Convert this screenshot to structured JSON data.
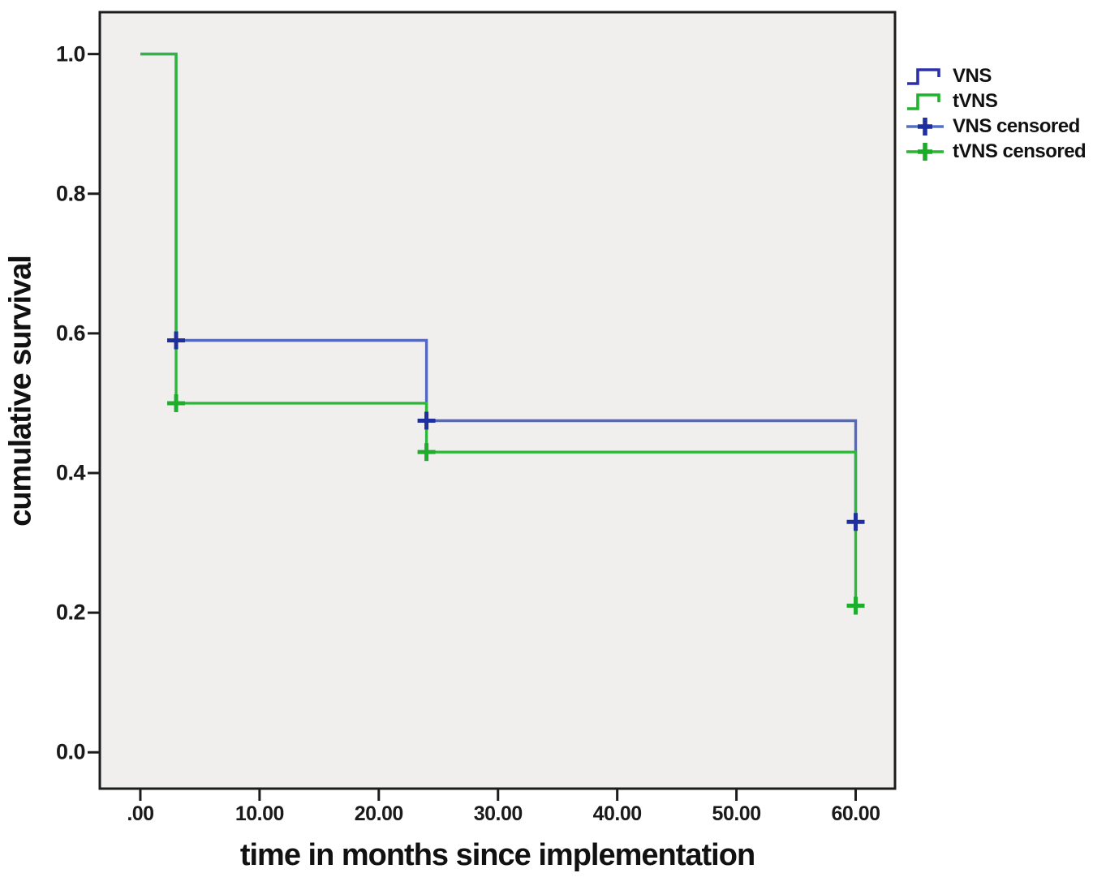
{
  "figure": {
    "background": "#ffffff",
    "plot_background": "#f0efee",
    "frame_color": "#1c1c1c",
    "text_color": "#1a1a1a"
  },
  "legend": {
    "items": [
      {
        "label": "VNS",
        "glyph": "step-line-icon",
        "color": "#2b2fb0",
        "accent": "#2b2fb0"
      },
      {
        "label": "tVNS",
        "glyph": "step-line-icon",
        "color": "#1eb42c",
        "accent": "#1eb42c"
      },
      {
        "label": "VNS censored",
        "glyph": "censored-plus-icon",
        "color": "#5570c6",
        "accent": "#1e2f9f"
      },
      {
        "label": "tVNS censored",
        "glyph": "censored-plus-icon",
        "color": "#25b531",
        "accent": "#1caa28"
      }
    ]
  },
  "chart_data": {
    "type": "line",
    "subtype": "kaplan_meier_step",
    "title": "",
    "xlabel": "time in months since implementation",
    "ylabel": "cumulative survival",
    "xlim": [
      -3.4,
      63.3
    ],
    "ylim": [
      -0.052,
      1.06
    ],
    "grid": false,
    "legend_position": "outside-top-right",
    "x_ticks": [
      {
        "value": 0,
        "label": ".00"
      },
      {
        "value": 10,
        "label": "10.00"
      },
      {
        "value": 20,
        "label": "20.00"
      },
      {
        "value": 30,
        "label": "30.00"
      },
      {
        "value": 40,
        "label": "40.00"
      },
      {
        "value": 50,
        "label": "50.00"
      },
      {
        "value": 60,
        "label": "60.00"
      }
    ],
    "y_ticks": [
      {
        "value": 0.0,
        "label": "0.0"
      },
      {
        "value": 0.2,
        "label": "0.2"
      },
      {
        "value": 0.4,
        "label": "0.4"
      },
      {
        "value": 0.6,
        "label": "0.6"
      },
      {
        "value": 0.8,
        "label": "0.8"
      },
      {
        "value": 1.0,
        "label": "1.0"
      }
    ],
    "series": [
      {
        "name": "VNS",
        "color": "#5468c0",
        "censor_color": "#1f2f9d",
        "steps": [
          [
            0,
            1.0
          ],
          [
            3,
            1.0
          ],
          [
            3,
            0.59
          ],
          [
            24,
            0.59
          ],
          [
            24,
            0.475
          ],
          [
            60,
            0.475
          ],
          [
            60,
            0.33
          ]
        ],
        "censored": [
          [
            3,
            0.59
          ],
          [
            24,
            0.475
          ],
          [
            60,
            0.33
          ]
        ]
      },
      {
        "name": "tVNS",
        "color": "#2db83a",
        "censor_color": "#1fad2c",
        "steps": [
          [
            0,
            1.0
          ],
          [
            3,
            1.0
          ],
          [
            3,
            0.5
          ],
          [
            24,
            0.5
          ],
          [
            24,
            0.43
          ],
          [
            60,
            0.43
          ],
          [
            60,
            0.21
          ]
        ],
        "censored": [
          [
            3,
            0.5
          ],
          [
            24,
            0.43
          ],
          [
            60,
            0.21
          ]
        ]
      }
    ]
  }
}
